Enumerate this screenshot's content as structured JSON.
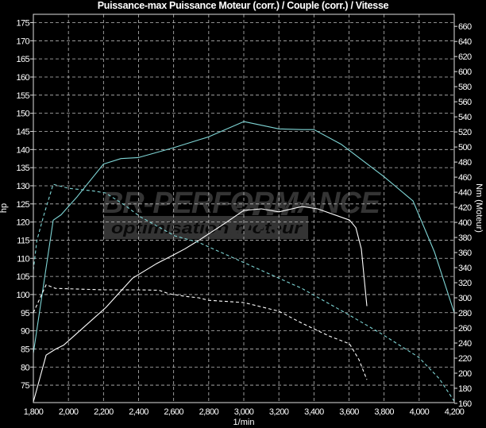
{
  "chart_data": {
    "type": "line",
    "title": "Puissance-max Puissance Moteur (corr.) / Couple (corr.) / Vitesse",
    "xlabel": "1/min",
    "ylabel_left": "hp",
    "ylabel_right": "Nm (Moteur)",
    "xlim": [
      1800,
      4200
    ],
    "ylim_left": [
      70.2,
      177.3
    ],
    "ylim_right": [
      161,
      676
    ],
    "x_ticks": [
      "1,800",
      "2,000",
      "2,200",
      "2,400",
      "2,600",
      "2,800",
      "3,000",
      "3,200",
      "3,400",
      "3,600",
      "3,800",
      "4,000",
      "4,200"
    ],
    "y_left_ticks": [
      "175",
      "170",
      "165",
      "160",
      "155",
      "150",
      "145",
      "140",
      "135",
      "130",
      "125",
      "120",
      "115",
      "110",
      "105",
      "100",
      "95",
      "90",
      "85",
      "80",
      "75"
    ],
    "y_right_ticks": [
      "660",
      "640",
      "620",
      "600",
      "580",
      "560",
      "540",
      "520",
      "500",
      "480",
      "460",
      "440",
      "420",
      "400",
      "380",
      "360",
      "340",
      "320",
      "300",
      "280",
      "260",
      "240",
      "220",
      "200",
      "180",
      "160"
    ],
    "grid": true,
    "background": "#000000",
    "series": [
      {
        "axis": "left",
        "color": "#7fd6d6",
        "style": "solid",
        "x": [
          1800,
          1913,
          1958,
          2050,
          2200,
          2300,
          2400,
          2600,
          2800,
          3000,
          3200,
          3331,
          3400,
          3557,
          3797,
          3965,
          4087,
          4200
        ],
        "y": [
          83.8,
          120.5,
          122,
          127,
          136,
          137.5,
          137.8,
          140.5,
          143.5,
          147.7,
          145.7,
          145.5,
          145.5,
          141.4,
          132.6,
          125.8,
          111.8,
          95
        ]
      },
      {
        "axis": "right",
        "color": "#ffffff",
        "style": "solid",
        "x": [
          1800,
          1873,
          1927,
          1972,
          2213,
          2366,
          2500,
          2593,
          2665,
          2742,
          2900,
          3000,
          3100,
          3200,
          3331,
          3421,
          3603,
          3639,
          3670,
          3702
        ],
        "y": [
          162,
          224,
          232,
          237,
          287,
          326,
          345,
          356,
          365,
          376,
          400,
          416,
          418,
          414,
          421,
          418,
          403,
          393,
          365,
          289
        ]
      },
      {
        "axis": "left",
        "color": "#ffffff",
        "style": "dashed",
        "x": [
          1800,
          1873,
          1927,
          2200,
          2400,
          2516,
          2575,
          2665,
          2742,
          2800,
          3000,
          3200,
          3331,
          3485,
          3603,
          3657,
          3702
        ],
        "y": [
          95,
          102.7,
          101.7,
          101.3,
          101.3,
          101.2,
          100.2,
          99.5,
          99.1,
          98.4,
          97.8,
          95.4,
          92.1,
          88.6,
          86.4,
          82,
          76.5
        ]
      },
      {
        "axis": "left",
        "color": "#7fd6d6",
        "style": "dashed",
        "x": [
          1800,
          1820,
          1860,
          1913,
          2003,
          2140,
          2213,
          2320,
          2411,
          2606,
          2742,
          3331,
          3603,
          3784,
          3997,
          4115,
          4200
        ],
        "y": [
          106.7,
          114.9,
          122,
          130.4,
          129.3,
          128.6,
          128,
          124.7,
          121.4,
          116.2,
          114.4,
          101.7,
          94.3,
          89.2,
          82.7,
          76.8,
          70.6
        ]
      }
    ]
  },
  "watermark": {
    "brand": "BR-PERFORMANCE",
    "tagline": "optimisation moteur"
  }
}
